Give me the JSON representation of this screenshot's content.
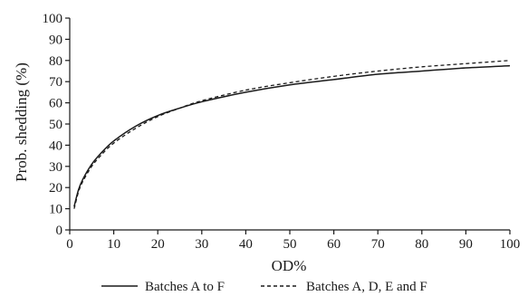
{
  "chart_data": {
    "type": "line",
    "xlabel": "OD%",
    "ylabel": "Prob. shedding (%)",
    "xlim": [
      0,
      100
    ],
    "ylim": [
      0,
      100
    ],
    "xticks": [
      0,
      10,
      20,
      30,
      40,
      50,
      60,
      70,
      80,
      90,
      100
    ],
    "yticks": [
      0,
      10,
      20,
      30,
      40,
      50,
      60,
      70,
      80,
      90,
      100
    ],
    "grid": false,
    "legend_position": "bottom",
    "series": [
      {
        "name": "Batches A to F",
        "style": "solid",
        "color": "#1a1a1a",
        "x": [
          1,
          2,
          3,
          5,
          7,
          10,
          15,
          20,
          25,
          30,
          40,
          50,
          60,
          70,
          80,
          90,
          100
        ],
        "y": [
          11,
          19,
          24,
          31,
          36,
          42,
          49,
          54,
          57.5,
          60.5,
          65,
          68.5,
          71,
          73.5,
          75,
          76.5,
          77.5
        ]
      },
      {
        "name": "Batches A, D, E and F",
        "style": "dashed",
        "color": "#1a1a1a",
        "x": [
          1,
          2,
          3,
          5,
          7,
          10,
          15,
          20,
          25,
          30,
          40,
          50,
          60,
          70,
          80,
          90,
          100
        ],
        "y": [
          10,
          18,
          23,
          30,
          35,
          41,
          48,
          53.5,
          57.5,
          61,
          66,
          69.5,
          72.5,
          75,
          77,
          78.5,
          80
        ]
      }
    ]
  }
}
